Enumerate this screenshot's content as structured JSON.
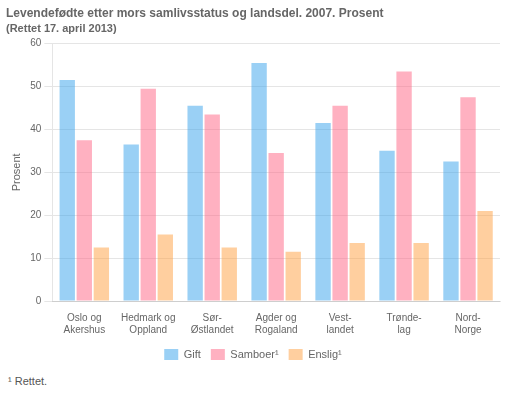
{
  "chart_data": {
    "type": "bar",
    "title": "Levendefødte etter mors samlivsstatus og landsdel. 2007. Prosent",
    "subtitle": "(Rettet 17. april 2013)",
    "ylabel": "Prosent",
    "annotations": [
      "¹ Rettet."
    ],
    "categories": [
      "Oslo og\nAkershus",
      "Hedmark og\nOppland",
      "Sør-\nØstlandet",
      "Agder og\nRogaland",
      "Vest-\nlandet",
      "Trønde-\nlag",
      "Nord-\nNorge"
    ],
    "series": [
      {
        "name": "Gift",
        "values": [
          51.5,
          36.5,
          45.5,
          55.5,
          41.5,
          35.0,
          32.5
        ]
      },
      {
        "name": "Samboer¹",
        "values": [
          37.5,
          49.5,
          43.5,
          34.5,
          45.5,
          53.5,
          47.5
        ]
      },
      {
        "name": "Enslig¹",
        "values": [
          12.5,
          15.5,
          12.5,
          11.5,
          13.5,
          13.5,
          21.0
        ]
      }
    ],
    "ylim": [
      0,
      60
    ],
    "yticks": [
      0,
      10,
      20,
      30,
      40,
      50,
      60
    ],
    "grid": true,
    "legend": "bottom"
  }
}
